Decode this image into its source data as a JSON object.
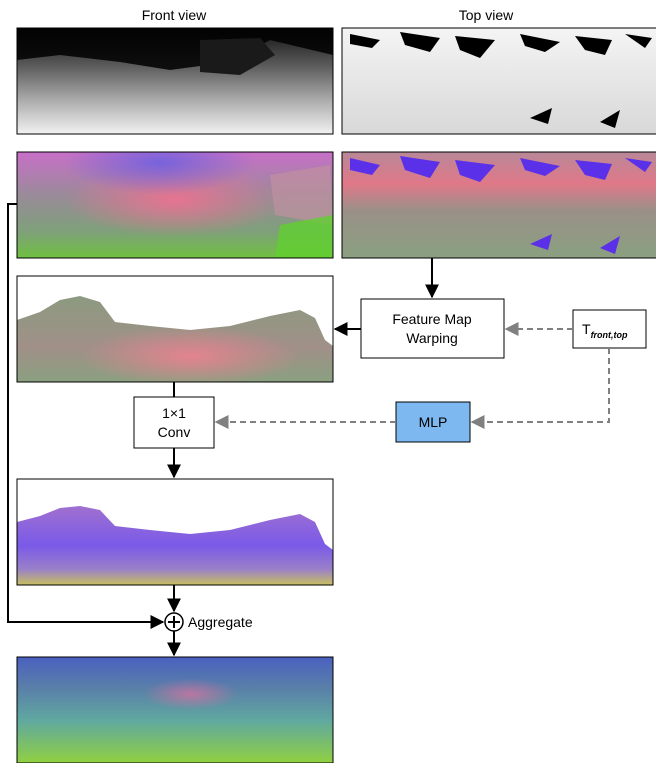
{
  "labels": {
    "front_view": "Front view",
    "top_view": "Top view",
    "feature_map_warping_line1": "Feature Map",
    "feature_map_warping_line2": "Warping",
    "conv_line1": "1×1",
    "conv_line2": "Conv",
    "mlp": "MLP",
    "transform_T": "T",
    "transform_subscript": "front,top",
    "aggregate": "Aggregate"
  },
  "colors": {
    "arrow_solid": "#000000",
    "arrow_dashed": "#808080",
    "mlp_fill": "#7eb8f0",
    "box_fill": "#ffffff"
  }
}
